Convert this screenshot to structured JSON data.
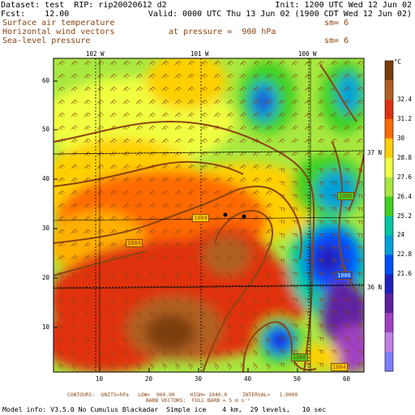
{
  "header": {
    "dataset_line": "Dataset: test  RIP: rip20020612 d2",
    "init_line": "Init: 1200 UTC Wed 12 Jun 02",
    "fcst_line": "Fcst:    12.00",
    "valid_line": "Valid: 0000 UTC Thu 13 Jun 02 (1900 CDT Wed 12 Jun 02)",
    "field1": "Surface air temperature",
    "field1_sm": "sm= 6",
    "field2": "Horizontal wind vectors",
    "field2_pressure": "at pressure =  900 hPa",
    "field3": "Sea-level pressure",
    "field3_sm": "sm= 6"
  },
  "colorbar": {
    "unit": "°C",
    "labels": [
      "32.4",
      "31.2",
      "30",
      "28.8",
      "27.6",
      "26.4",
      "25.2",
      "24",
      "22.8",
      "21.6"
    ],
    "colors": [
      "#7a3d0a",
      "#b06020",
      "#e03010",
      "#ff6a00",
      "#ffd000",
      "#f0ff40",
      "#a8e840",
      "#40d020",
      "#00c8a0",
      "#00a0d8",
      "#0050ff",
      "#2020c0",
      "#6020a0",
      "#a040c0",
      "#c080e0",
      "#8080ff"
    ]
  },
  "map": {
    "lon_labels": [
      "102 W",
      "101 W",
      "100 W"
    ],
    "lat_labels": [
      "37 N",
      "36 N"
    ],
    "x_ticks": [
      "10",
      "20",
      "30",
      "40",
      "50",
      "60"
    ],
    "y_ticks": [
      "10",
      "20",
      "30",
      "40",
      "50",
      "60"
    ],
    "contour_labels": [
      "1004",
      "1004",
      "1006",
      "1006",
      "1006",
      "1004",
      "1006"
    ],
    "high_low_label": "H"
  },
  "footer": {
    "line1": "CONTOURS:  UNITS=hPa   LOW=  960.00     HIGH= 1040.0     INTERVAL=   1.0000",
    "line2": "BARB VECTORS:  FULL BARB = 5 m s⁻¹",
    "line3": "Model info: V3.5.0 No Cumulus Blackadar  Simple ice    4 km,  29 levels,   10 sec"
  },
  "colors": {
    "contour": "#8b4513",
    "text_brown": "#8b4513",
    "grid": "#000000"
  }
}
